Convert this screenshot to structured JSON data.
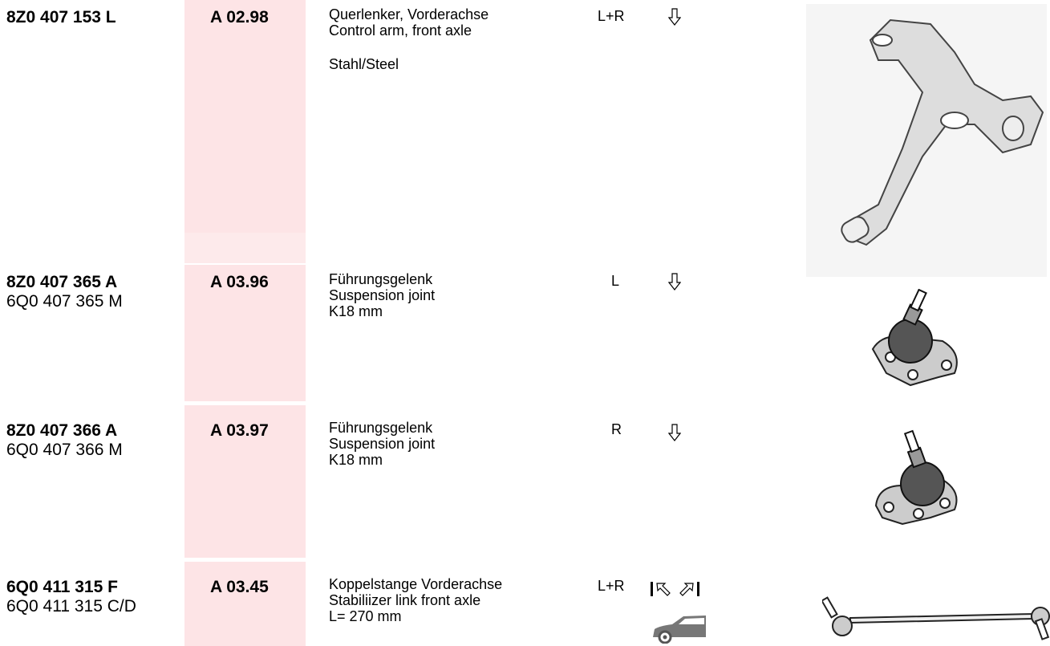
{
  "rows": [
    {
      "parts": [
        "8Z0 407 153 L"
      ],
      "code": "A 02.98",
      "description": [
        "Querlenker, Vorderachse",
        "Control arm, front axle",
        "Stahl/Steel"
      ],
      "side": "L+R"
    },
    {
      "parts": [
        "8Z0 407 365 A",
        "6Q0 407 365 M"
      ],
      "code": "A 03.96",
      "description": [
        "Führungsgelenk",
        "Suspension joint",
        "K18 mm"
      ],
      "side": "L"
    },
    {
      "parts": [
        "8Z0 407 366 A",
        "6Q0 407 366 M"
      ],
      "code": "A 03.97",
      "description": [
        "Führungsgelenk",
        "Suspension joint",
        "K18 mm"
      ],
      "side": "R"
    },
    {
      "parts": [
        "6Q0 411 315 F",
        "6Q0 411 315 C/D"
      ],
      "code": "A 03.45",
      "description": [
        "Koppelstange Vorderachse",
        "Stabiliizer link front axle",
        "L= 270 mm"
      ],
      "side": "L+R"
    }
  ]
}
